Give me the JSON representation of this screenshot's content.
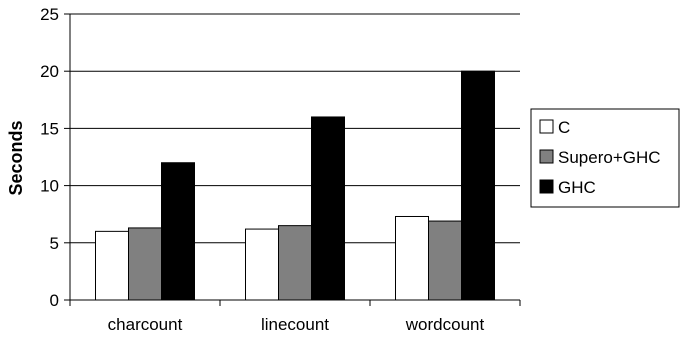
{
  "chart_data": {
    "type": "bar",
    "title": "",
    "xlabel": "",
    "ylabel": "Seconds",
    "ylim": [
      0,
      25
    ],
    "yticks": [
      0,
      5,
      10,
      15,
      20,
      25
    ],
    "grid": true,
    "legend_position": "right",
    "categories": [
      "charcount",
      "linecount",
      "wordcount"
    ],
    "series": [
      {
        "name": "C",
        "color": "#ffffff",
        "values": [
          6.0,
          6.2,
          7.3
        ]
      },
      {
        "name": "Supero+GHC",
        "color": "#808080",
        "values": [
          6.3,
          6.5,
          6.9
        ]
      },
      {
        "name": "GHC",
        "color": "#000000",
        "values": [
          12.0,
          16.0,
          20.0
        ]
      }
    ]
  }
}
